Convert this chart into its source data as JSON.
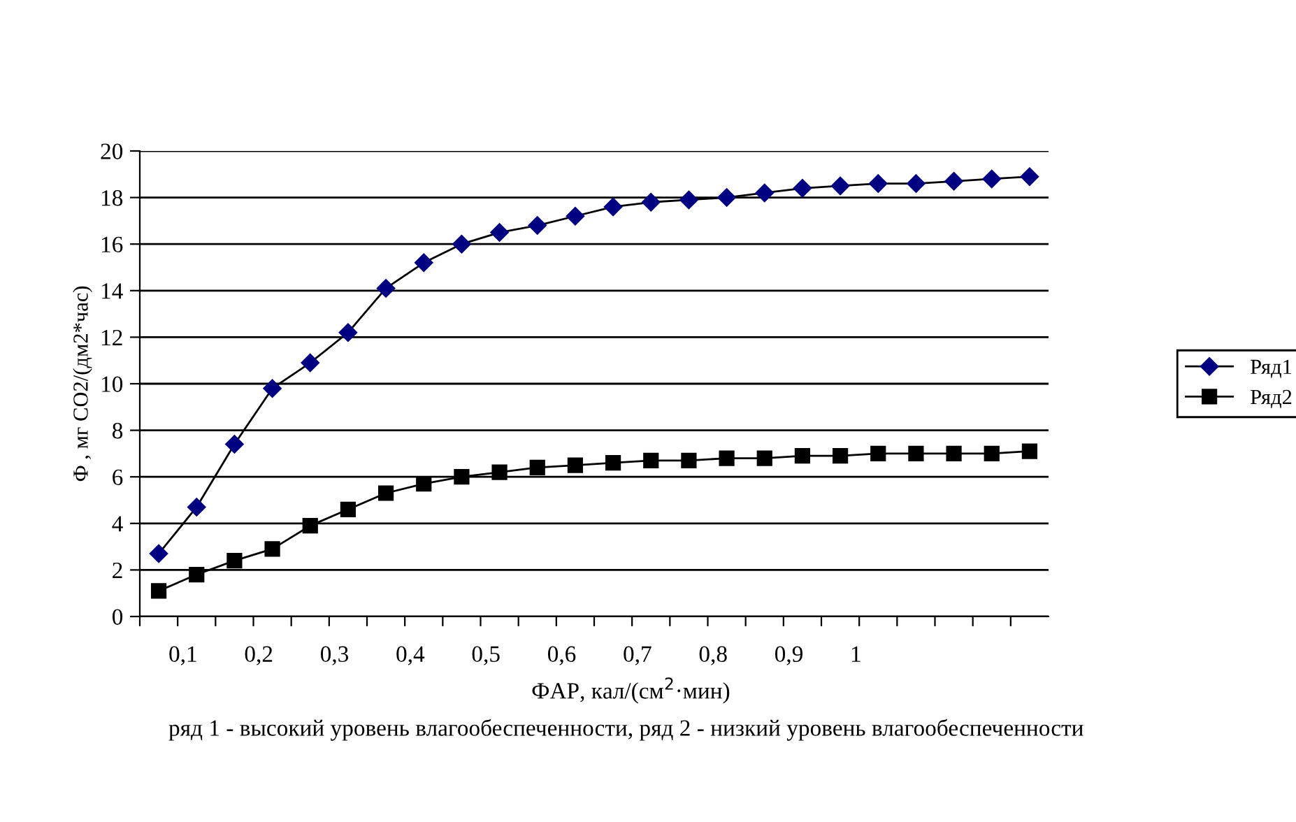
{
  "chart_data": {
    "type": "line",
    "ylabel": "Ф , мг CO2/(дм2*час)",
    "categories": [
      null,
      null,
      null,
      null,
      null,
      null,
      null,
      null,
      null,
      null,
      null,
      null,
      null,
      null,
      null,
      null,
      null,
      null,
      null,
      null,
      null,
      null,
      null,
      null
    ],
    "series": [
      {
        "name": "Ряд1",
        "color": "#000080",
        "marker": "diamond",
        "values": [
          2.7,
          4.7,
          7.4,
          9.8,
          10.9,
          12.2,
          14.1,
          15.2,
          16.0,
          16.5,
          16.8,
          17.2,
          17.6,
          17.8,
          17.9,
          18.0,
          18.2,
          18.4,
          18.5,
          18.6,
          18.6,
          18.7,
          18.8,
          18.9
        ]
      },
      {
        "name": "Ряд2",
        "color": "#000000",
        "marker": "square",
        "values": [
          1.1,
          1.8,
          2.4,
          2.9,
          3.9,
          4.6,
          5.3,
          5.7,
          6.0,
          6.2,
          6.4,
          6.5,
          6.6,
          6.7,
          6.7,
          6.8,
          6.8,
          6.9,
          6.9,
          7.0,
          7.0,
          7.0,
          7.0,
          7.1
        ]
      }
    ],
    "ylim": [
      0,
      20
    ],
    "yticks": [
      0,
      2,
      4,
      6,
      8,
      10,
      12,
      14,
      16,
      18,
      20
    ],
    "grid": "y",
    "legend": "right",
    "line_style": "solid",
    "annotations": [
      "0,1        0,2        0,3        0,4        0,5        0,6        0,7        0,8        0,9        1",
      "ФАР, кал/(см$^{2}$·мин)",
      "ряд 1 - высокий уровень влагообеспеченности, ряд 2 - низкий уровень влагообеспеченности"
    ]
  }
}
